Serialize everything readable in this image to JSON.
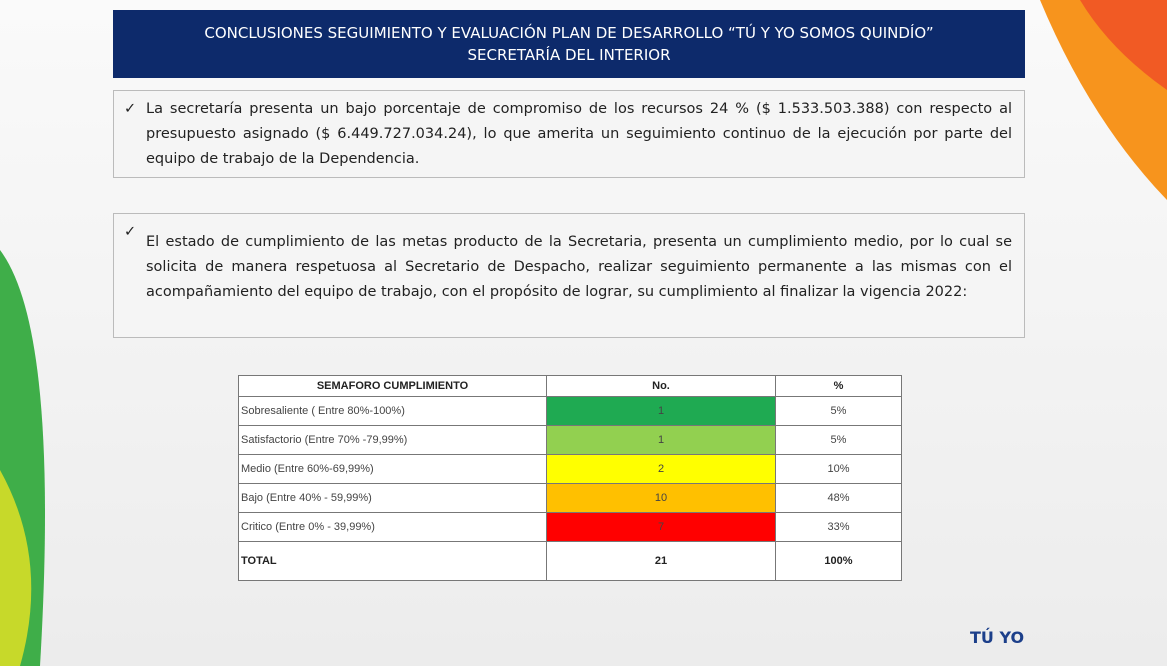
{
  "header": {
    "title_lines": [
      "CONCLUSIONES SEGUIMIENTO Y EVALUACIÓN PLAN DE DESARROLLO “TÚ Y YO SOMOS QUINDÍO”",
      "SECRETARÍA DEL  INTERIOR"
    ]
  },
  "paragraphs": [
    "La secretaría presenta un bajo porcentaje de compromiso de los recursos 24 % ($ 1.533.503.388) con respecto al presupuesto asignado ($ 6.449.727.034.24), lo que amerita un seguimiento continuo de la ejecución por parte del equipo de trabajo de la Dependencia.",
    "El estado de cumplimiento de las metas producto de la Secretaria, presenta  un cumplimiento medio, por lo cual se solicita de manera respetuosa al Secretario de Despacho, realizar seguimiento permanente a las mismas con el acompañamiento del equipo de trabajo,  con el propósito de lograr, su cumplimiento al finalizar la vigencia 2022:"
  ],
  "table": {
    "header": [
      "SEMAFORO CUMPLIMIENTO",
      "No.",
      "%"
    ],
    "rows": [
      {
        "cells": [
          "Sobresaliente  ( Entre 80%-100%)",
          "1",
          "5%"
        ],
        "color": "#1faa52"
      },
      {
        "cells": [
          "Satisfactorio (Entre 70% -79,99%)",
          "1",
          "5%"
        ],
        "color": "#92d050"
      },
      {
        "cells": [
          "Medio (Entre 60%-69,99%)",
          "2",
          "10%"
        ],
        "color": "#ffff00"
      },
      {
        "cells": [
          "Bajo (Entre 40% - 59,99%)",
          "10",
          "48%"
        ],
        "color": "#ffc000"
      },
      {
        "cells": [
          "Critico (Entre 0% - 39,99%)",
          "7",
          "33%"
        ],
        "color": "#ff0000"
      }
    ],
    "total": [
      "TOTAL",
      "21",
      "100%"
    ]
  },
  "footer_logo": "TÚ YO"
}
